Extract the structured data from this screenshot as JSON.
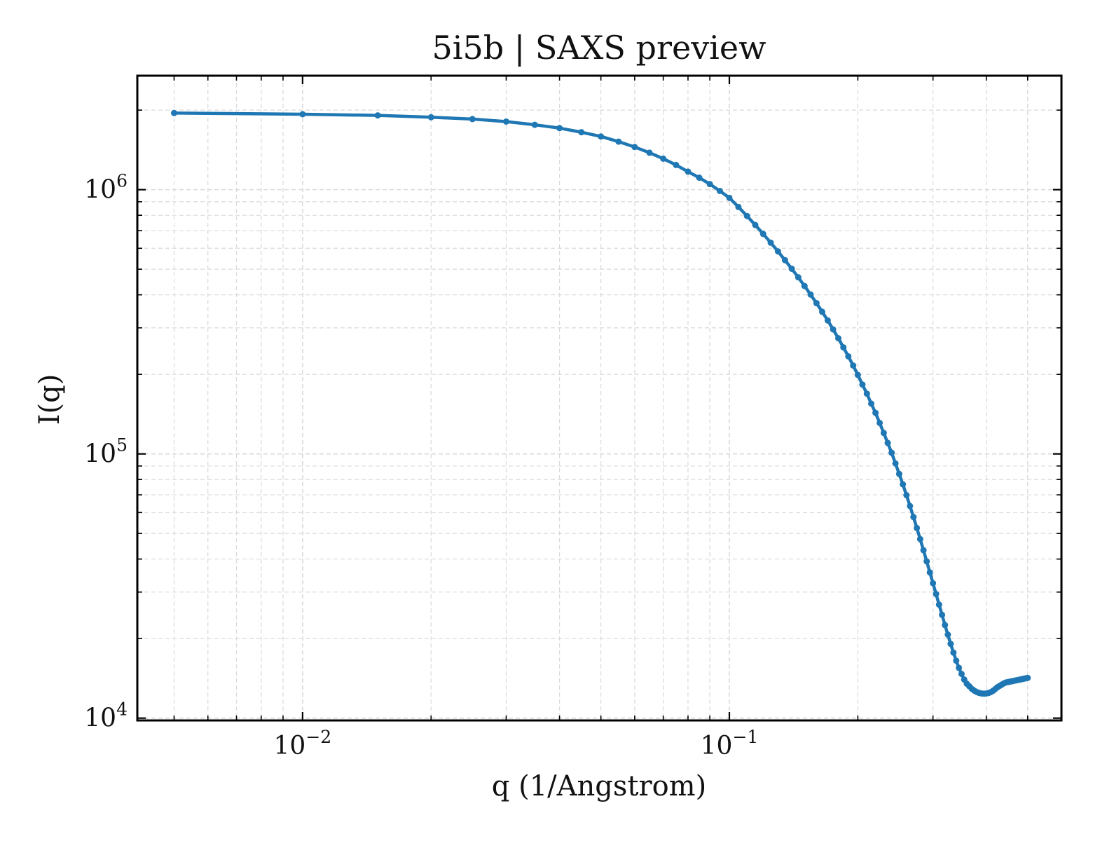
{
  "chart_data": {
    "type": "line",
    "title": "5i5b | SAXS preview",
    "xlabel": "q (1/Angstrom)",
    "ylabel": "I(q)",
    "xscale": "log",
    "yscale": "log",
    "xlim": [
      0.0041,
      0.6
    ],
    "ylim": [
      9800,
      2700000
    ],
    "grid": true,
    "line_color": "#1f77b4",
    "x_ticks": [
      {
        "value": 0.01,
        "base": "10",
        "exp": "−2"
      },
      {
        "value": 0.1,
        "base": "10",
        "exp": "−1"
      }
    ],
    "y_ticks": [
      {
        "value": 10000,
        "base": "10",
        "exp": "4"
      },
      {
        "value": 100000,
        "base": "10",
        "exp": "5"
      },
      {
        "value": 1000000,
        "base": "10",
        "exp": "6"
      }
    ],
    "series": [
      {
        "x": [
          0.005,
          0.01,
          0.015,
          0.02,
          0.025,
          0.03,
          0.035,
          0.04,
          0.045,
          0.05,
          0.055,
          0.06,
          0.065,
          0.07,
          0.075,
          0.08,
          0.085,
          0.09,
          0.095,
          0.1,
          0.105,
          0.11,
          0.115,
          0.12,
          0.125,
          0.13,
          0.135,
          0.14,
          0.145,
          0.15,
          0.155,
          0.16,
          0.165,
          0.17,
          0.175,
          0.18,
          0.185,
          0.19,
          0.195,
          0.2,
          0.205,
          0.21,
          0.215,
          0.22,
          0.225,
          0.23,
          0.235,
          0.24,
          0.245,
          0.25,
          0.255,
          0.26,
          0.265,
          0.27,
          0.275,
          0.28,
          0.285,
          0.29,
          0.295,
          0.3,
          0.305,
          0.31,
          0.315,
          0.32,
          0.325,
          0.33,
          0.335,
          0.34,
          0.345,
          0.35,
          0.355,
          0.36,
          0.365,
          0.37,
          0.375,
          0.38,
          0.385,
          0.39,
          0.395,
          0.4,
          0.405,
          0.41,
          0.415,
          0.42,
          0.425,
          0.43,
          0.435,
          0.44,
          0.445,
          0.45,
          0.455,
          0.46,
          0.465,
          0.47,
          0.475,
          0.48,
          0.485,
          0.49,
          0.495,
          0.5
        ],
        "y": [
          1950000,
          1930000,
          1910000,
          1880000,
          1850000,
          1810000,
          1760000,
          1710000,
          1650000,
          1590000,
          1520000,
          1450000,
          1380000,
          1310000,
          1240000,
          1170000,
          1110000,
          1050000,
          989000,
          931000,
          860000,
          795000,
          735000,
          680000,
          630000,
          584000,
          541000,
          502000,
          466000,
          432000,
          401000,
          372000,
          345000,
          320000,
          296000,
          274000,
          253000,
          234000,
          216000,
          199000,
          183000,
          169000,
          155000,
          143000,
          131000,
          120000,
          110000,
          101000,
          92000,
          84000,
          76700,
          69800,
          63500,
          57700,
          52400,
          47600,
          43200,
          39200,
          35600,
          32400,
          29500,
          26900,
          24600,
          22500,
          20700,
          19100,
          17700,
          16500,
          15500,
          14700,
          14000,
          13500,
          13200,
          12900,
          12700,
          12550,
          12450,
          12400,
          12380,
          12400,
          12450,
          12550,
          12700,
          12900,
          13100,
          13250,
          13400,
          13550,
          13650,
          13700,
          13750,
          13800,
          13850,
          13900,
          13950,
          14000,
          14050,
          14100,
          14150,
          14200
        ]
      }
    ]
  }
}
